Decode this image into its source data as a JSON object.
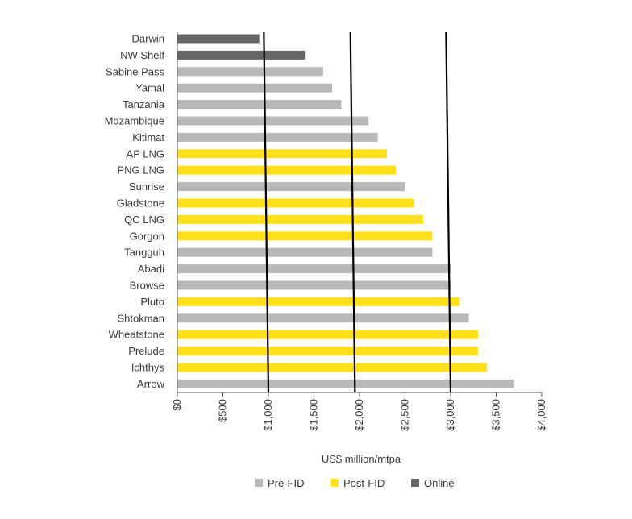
{
  "chart_data": {
    "type": "bar",
    "orientation": "horizontal",
    "title": "",
    "xlabel": "US$ million/mtpa",
    "ylabel": "",
    "xlim": [
      0,
      4000
    ],
    "x_ticks": [
      0,
      500,
      1000,
      1500,
      2000,
      2500,
      3000,
      3500,
      4000
    ],
    "x_tick_labels": [
      "$0",
      "$500",
      "$1,000",
      "$1,500",
      "$2,000",
      "$2,500",
      "$3,000",
      "$3,500",
      "$4,000"
    ],
    "legend_position": "bottom",
    "legend": [
      {
        "key": "pre",
        "label": "Pre-FID"
      },
      {
        "key": "post",
        "label": "Post-FID"
      },
      {
        "key": "online",
        "label": "Online"
      }
    ],
    "status_colors": {
      "pre": "#b8b8b8",
      "post": "#ffe01a",
      "online": "#666666"
    },
    "categories": [
      "Darwin",
      "NW Shelf",
      "Sabine Pass",
      "Yamal",
      "Tanzania",
      "Mozambique",
      "Kitimat",
      "AP LNG",
      "PNG LNG",
      "Sunrise",
      "Gladstone",
      "QC LNG",
      "Gorgon",
      "Tangguh",
      "Abadi",
      "Browse",
      "Pluto",
      "Shtokman",
      "Wheatstone",
      "Prelude",
      "Ichthys",
      "Arrow"
    ],
    "values": [
      900,
      1400,
      1600,
      1700,
      1800,
      2100,
      2200,
      2300,
      2400,
      2500,
      2600,
      2700,
      2800,
      2800,
      3000,
      3000,
      3100,
      3200,
      3300,
      3300,
      3400,
      3700
    ],
    "status": [
      "online",
      "online",
      "pre",
      "pre",
      "pre",
      "pre",
      "pre",
      "post",
      "post",
      "pre",
      "post",
      "post",
      "post",
      "pre",
      "pre",
      "pre",
      "post",
      "pre",
      "post",
      "post",
      "post",
      "pre"
    ],
    "trend_lines": [
      {
        "x_top": 950,
        "x_bottom": 1000
      },
      {
        "x_top": 1900,
        "x_bottom": 1950
      },
      {
        "x_top": 2950,
        "x_bottom": 3000
      }
    ]
  }
}
